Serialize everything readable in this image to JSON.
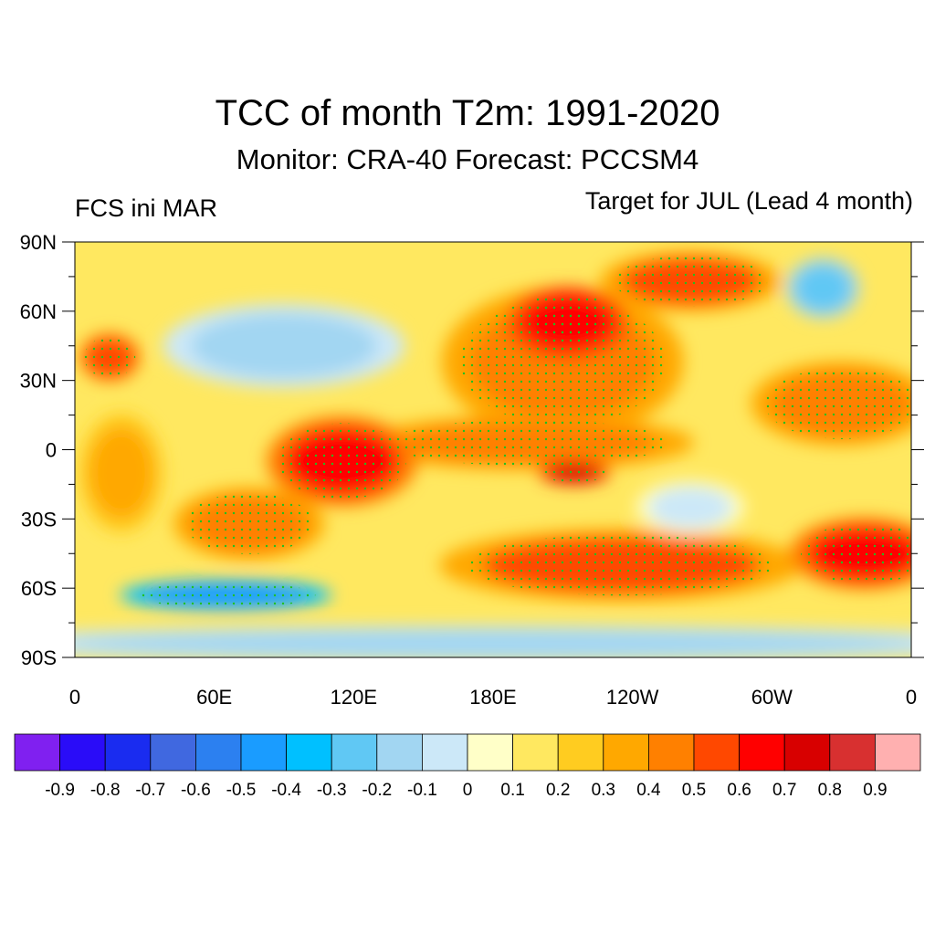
{
  "title": "TCC of month T2m: 1991-2020",
  "subtitle": "Monitor: CRA-40   Forecast: PCCSM4",
  "left_label": "FCS ini MAR",
  "right_label": "Target for JUL (Lead 4 month)",
  "chart_data": {
    "type": "heatmap",
    "projection": "cylindrical equidistant",
    "lon_range": [
      0,
      360
    ],
    "lat_range": [
      -90,
      90
    ],
    "lat_ticks": [
      {
        "v": 90,
        "label": "90N"
      },
      {
        "v": 60,
        "label": "60N"
      },
      {
        "v": 30,
        "label": "30N"
      },
      {
        "v": 0,
        "label": "0"
      },
      {
        "v": -30,
        "label": "30S"
      },
      {
        "v": -60,
        "label": "60S"
      },
      {
        "v": -90,
        "label": "90S"
      }
    ],
    "lon_ticks": [
      {
        "v": 0,
        "label": "0"
      },
      {
        "v": 60,
        "label": "60E"
      },
      {
        "v": 120,
        "label": "120E"
      },
      {
        "v": 180,
        "label": "180E"
      },
      {
        "v": 240,
        "label": "120W"
      },
      {
        "v": 300,
        "label": "60W"
      },
      {
        "v": 360,
        "label": "0"
      }
    ],
    "colorbar": {
      "levels": [
        "-0.9",
        "-0.8",
        "-0.7",
        "-0.6",
        "-0.5",
        "-0.4",
        "-0.3",
        "-0.2",
        "-0.1",
        "0",
        "0.1",
        "0.2",
        "0.3",
        "0.4",
        "0.5",
        "0.6",
        "0.7",
        "0.8",
        "0.9"
      ],
      "colors": [
        "#8020f0",
        "#2a0cf8",
        "#1a2cf0",
        "#4068e0",
        "#2c80f0",
        "#1a9cff",
        "#00c0ff",
        "#60c8f4",
        "#a2d6f2",
        "#cce8f8",
        "#ffffc8",
        "#ffe860",
        "#ffcc20",
        "#ffa800",
        "#ff8000",
        "#ff4800",
        "#ff0000",
        "#d80000",
        "#d83030",
        "#ffb0b0"
      ]
    },
    "background_value": 0.15,
    "regions": [
      {
        "name": "asia-interior",
        "lon": 90,
        "lat": 45,
        "rlon": 40,
        "rlat": 14,
        "value": -0.15
      },
      {
        "name": "north-pacific",
        "lon": 210,
        "lat": 38,
        "rlon": 40,
        "rlat": 25,
        "value": 0.45
      },
      {
        "name": "alaska-bering",
        "lon": 212,
        "lat": 55,
        "rlon": 20,
        "rlat": 12,
        "value": 0.65
      },
      {
        "name": "tropical-pacific-band",
        "lon": 195,
        "lat": 3,
        "rlon": 55,
        "rlat": 9,
        "value": 0.45
      },
      {
        "name": "east-pacific-core",
        "lon": 215,
        "lat": -10,
        "rlon": 12,
        "rlat": 4,
        "value": 0.7
      },
      {
        "name": "maritime-continent",
        "lon": 115,
        "lat": -5,
        "rlon": 25,
        "rlat": 15,
        "value": 0.6
      },
      {
        "name": "south-indian-ocean",
        "lon": 75,
        "lat": -32,
        "rlon": 25,
        "rlat": 12,
        "value": 0.45
      },
      {
        "name": "southern-ocean-pacific",
        "lon": 235,
        "lat": -50,
        "rlon": 60,
        "rlat": 12,
        "value": 0.5
      },
      {
        "name": "south-atlantic",
        "lon": 340,
        "lat": -45,
        "rlon": 25,
        "rlat": 12,
        "value": 0.6
      },
      {
        "name": "north-atlantic",
        "lon": 330,
        "lat": 20,
        "rlon": 30,
        "rlat": 14,
        "value": 0.45
      },
      {
        "name": "arctic-canada",
        "lon": 265,
        "lat": 73,
        "rlon": 30,
        "rlat": 10,
        "value": 0.5
      },
      {
        "name": "greenland",
        "lon": 322,
        "lat": 70,
        "rlon": 12,
        "rlat": 10,
        "value": -0.3
      },
      {
        "name": "europe-mediterranean",
        "lon": 15,
        "lat": 40,
        "rlon": 10,
        "rlat": 8,
        "value": 0.55
      },
      {
        "name": "africa",
        "lon": 20,
        "lat": -10,
        "rlon": 14,
        "rlat": 20,
        "value": 0.35
      },
      {
        "name": "southeast-pacific",
        "lon": 265,
        "lat": -25,
        "rlon": 18,
        "rlat": 9,
        "value": -0.1
      },
      {
        "name": "antarctic-coast-indian",
        "lon": 65,
        "lat": -63,
        "rlon": 35,
        "rlat": 5,
        "value": -0.5
      },
      {
        "name": "antarctic-interior",
        "lon": 180,
        "lat": -84,
        "rlon": 185,
        "rlat": 6,
        "value": -0.2
      }
    ]
  }
}
